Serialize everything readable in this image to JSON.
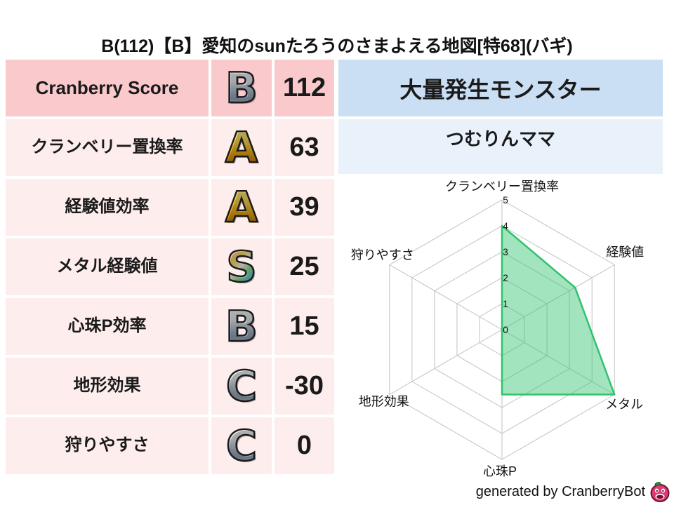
{
  "title": "B(112)【B】愛知のsunたろうのさまよえる地図[特68](バギ)",
  "stats_table": {
    "rows": [
      {
        "label": "Cranberry Score",
        "label_lang": "en",
        "grade": "B",
        "grade_style": "silver",
        "value": "112"
      },
      {
        "label": "クランベリー置換率",
        "label_lang": "ja",
        "grade": "A",
        "grade_style": "gold",
        "value": "63"
      },
      {
        "label": "経験値効率",
        "label_lang": "ja",
        "grade": "A",
        "grade_style": "gold",
        "value": "39"
      },
      {
        "label": "メタル経験値",
        "label_lang": "ja",
        "grade": "S",
        "grade_style": "rainbow",
        "value": "25"
      },
      {
        "label": "心珠P効率",
        "label_lang": "ja",
        "grade": "B",
        "grade_style": "silver",
        "value": "15"
      },
      {
        "label": "地形効果",
        "label_lang": "ja",
        "grade": "C",
        "grade_style": "silver",
        "value": "-30"
      },
      {
        "label": "狩りやすさ",
        "label_lang": "ja",
        "grade": "C",
        "grade_style": "silver",
        "value": "0"
      }
    ]
  },
  "monster_panel": {
    "header": "大量発生モンスター",
    "name": "つむりんママ"
  },
  "chart_data": {
    "type": "radar",
    "categories": [
      "クランベリー置換率",
      "経験値",
      "メタル",
      "心珠P",
      "地形効果",
      "狩りやすさ"
    ],
    "values": [
      4,
      3.25,
      5,
      2.5,
      0,
      0
    ],
    "rmin": 0,
    "rmax": 5,
    "ticks": [
      0,
      1,
      2,
      3,
      4,
      5
    ],
    "grid": true,
    "grid_color": "#c2c2c2",
    "series_color": "#2fc36e",
    "fill_opacity": 0.45,
    "legend": "none",
    "title": ""
  },
  "footer": {
    "credit": "generated by CranberryBot",
    "icon": "cranberry-icon"
  },
  "colors": {
    "row_dark_pink": "#f9c9cc",
    "row_light_pink": "#fdedec",
    "header_blue": "#cadef4",
    "name_light_blue": "#e9f2fb",
    "radar_green": "#2fc36e"
  }
}
